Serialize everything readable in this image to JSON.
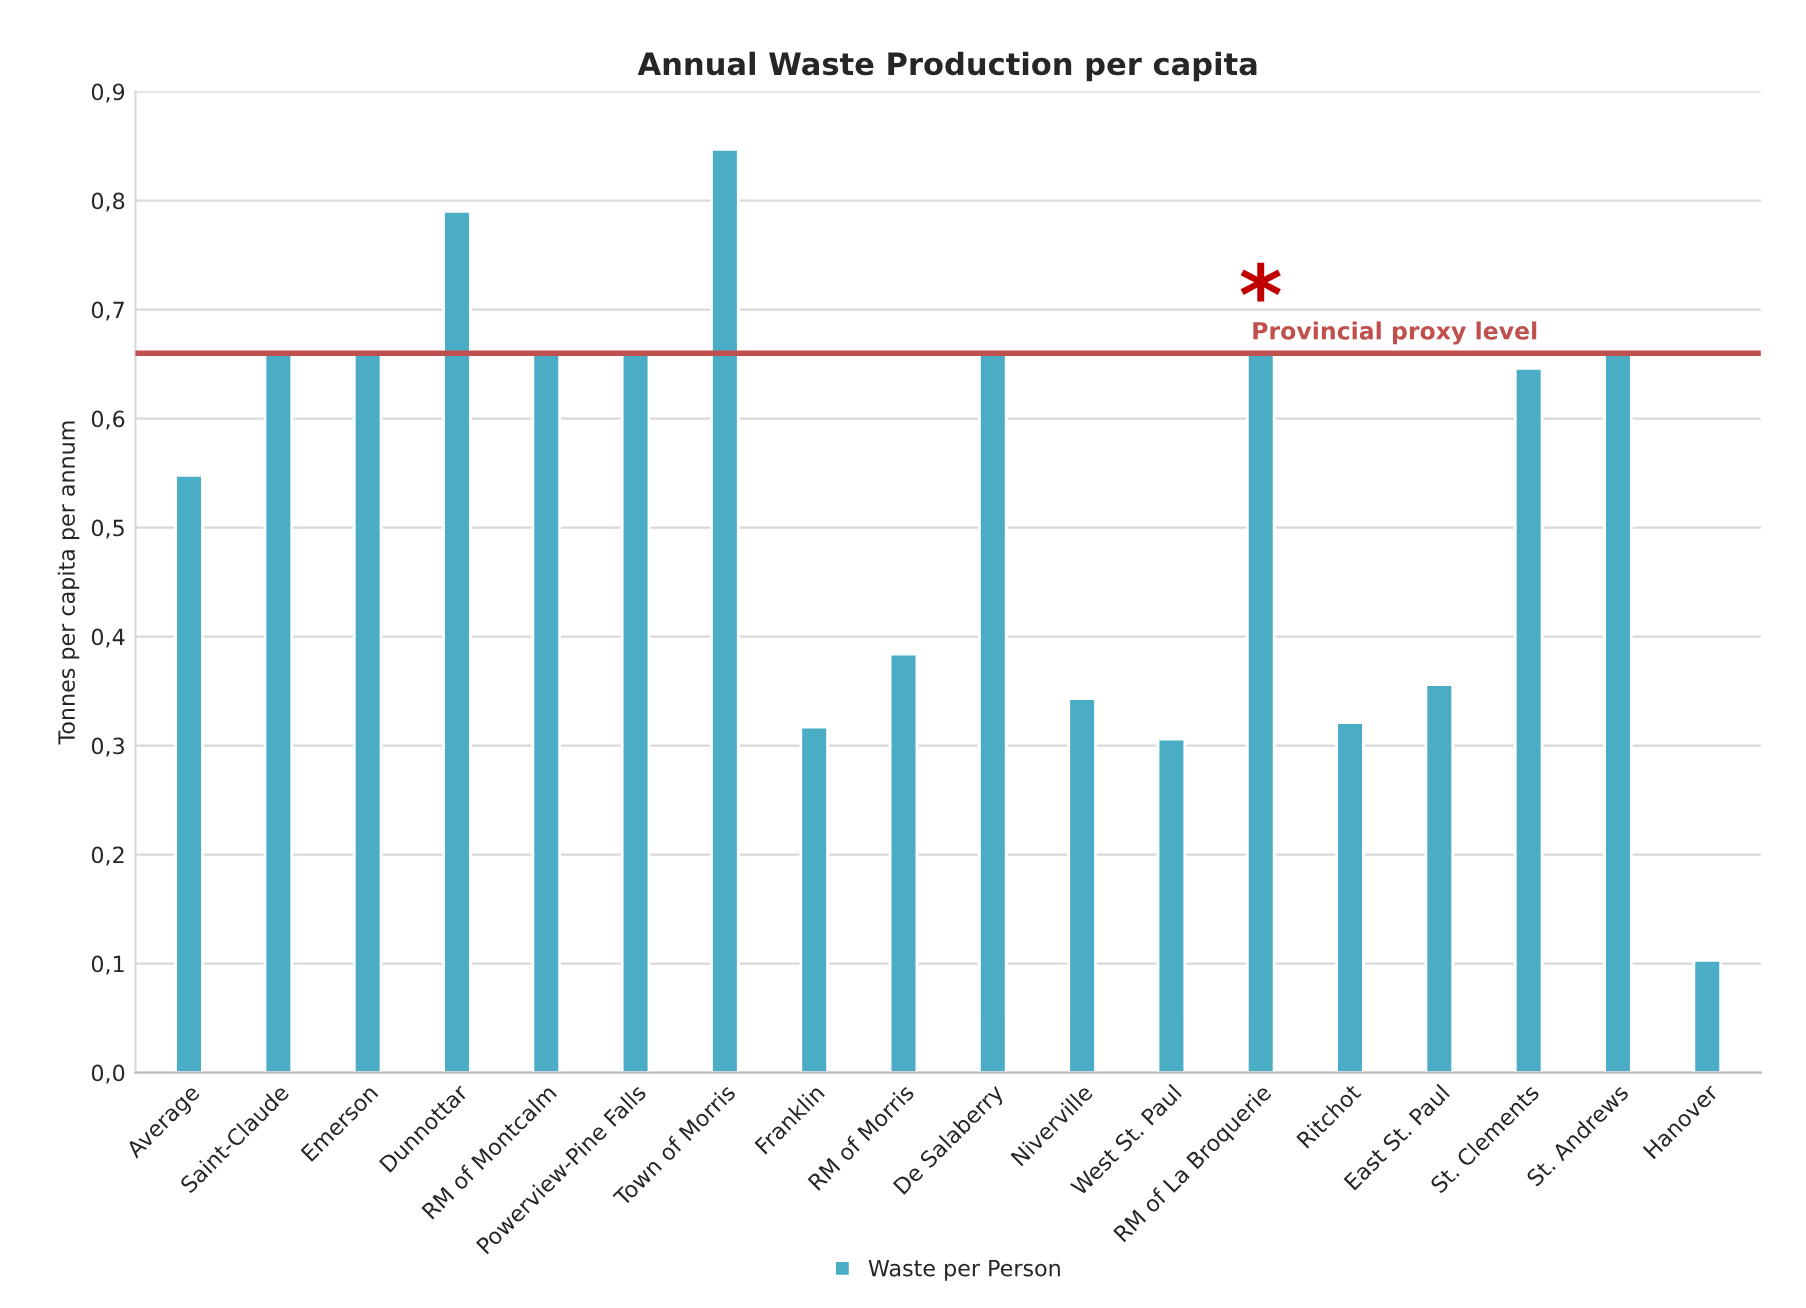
{
  "chart_data": {
    "type": "bar",
    "title": "Annual Waste Production per capita",
    "ylabel": "Tonnes per capita per annum",
    "categories": [
      "Average",
      "Saint-Claude",
      "Emerson",
      "Dunnottar",
      "RM of Montcalm",
      "Powerview-Pine Falls",
      "Town of Morris",
      "Franklin",
      "RM of Morris",
      "De Salaberry",
      "Niverville",
      "West St. Paul",
      "RM of La Broquerie",
      "Ritchot",
      "East St. Paul",
      "St. Clements",
      "St. Andrews",
      "Hanover"
    ],
    "series": [
      {
        "name": "Waste per Person",
        "color": "#4bacc6",
        "values": [
          0.548,
          0.66,
          0.66,
          0.79,
          0.66,
          0.66,
          0.847,
          0.317,
          0.384,
          0.66,
          0.343,
          0.306,
          0.66,
          0.321,
          0.356,
          0.646,
          0.66,
          0.103
        ]
      }
    ],
    "ylim": [
      0,
      0.9
    ],
    "yticks": [
      {
        "value": 0,
        "label": "0,0"
      },
      {
        "value": 0.1,
        "label": "0,1"
      },
      {
        "value": 0.2,
        "label": "0,2"
      },
      {
        "value": 0.3,
        "label": "0,3"
      },
      {
        "value": 0.4,
        "label": "0,4"
      },
      {
        "value": 0.5,
        "label": "0,5"
      },
      {
        "value": 0.6,
        "label": "0,6"
      },
      {
        "value": 0.7,
        "label": "0,7"
      },
      {
        "value": 0.8,
        "label": "0,8"
      },
      {
        "value": 0.9,
        "label": "0,9"
      }
    ],
    "ref_lines": [
      {
        "axis": "y",
        "value": 0.66,
        "label": "Provincial proxy level",
        "color": "#c0504d"
      }
    ],
    "annotations": [
      {
        "text": "*",
        "x": "RM of La Broquerie",
        "y": 0.66
      }
    ],
    "grid": "y",
    "legend": "bottom"
  }
}
